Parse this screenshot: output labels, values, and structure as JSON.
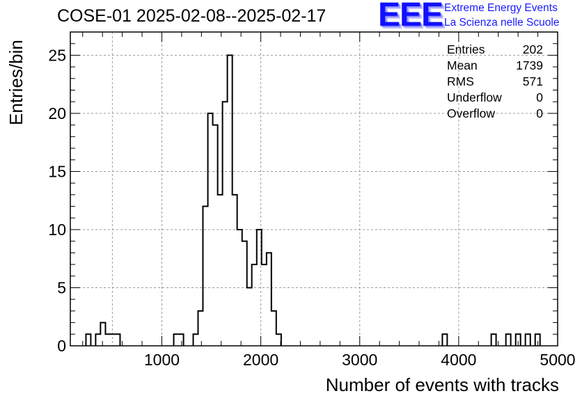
{
  "title": "COSE-01 2025-02-08--2025-02-17",
  "logo": {
    "mark": "EEE",
    "line1": "Extreme Energy Events",
    "line2": "La Scienza nelle Scuole"
  },
  "stats": [
    {
      "label": "Entries",
      "value": "202"
    },
    {
      "label": "Mean",
      "value": "1739"
    },
    {
      "label": "RMS",
      "value": "571"
    },
    {
      "label": "Underflow",
      "value": "0"
    },
    {
      "label": "Overflow",
      "value": "0"
    }
  ],
  "colors": {
    "line": "#000000",
    "grid": "#9a9a9a",
    "logo": "#1010ff"
  },
  "chart_data": {
    "type": "bar",
    "style": "step-histogram",
    "xlabel": "Number of events with tracks",
    "ylabel": "Entries/bin",
    "xlim": [
      75,
      5000
    ],
    "ylim": [
      0,
      27
    ],
    "x_ticks": [
      1000,
      2000,
      3000,
      4000,
      5000
    ],
    "y_ticks": [
      0,
      5,
      10,
      15,
      20,
      25
    ],
    "grid": true,
    "legend": "none",
    "bins": [
      {
        "x0": 233,
        "x1": 282,
        "count": 1
      },
      {
        "x0": 331,
        "x1": 380,
        "count": 1
      },
      {
        "x0": 380,
        "x1": 430,
        "count": 2
      },
      {
        "x0": 430,
        "x1": 479,
        "count": 1
      },
      {
        "x0": 479,
        "x1": 529,
        "count": 1
      },
      {
        "x0": 529,
        "x1": 578,
        "count": 1
      },
      {
        "x0": 1120,
        "x1": 1169,
        "count": 1
      },
      {
        "x0": 1169,
        "x1": 1219,
        "count": 1
      },
      {
        "x0": 1317,
        "x1": 1366,
        "count": 1
      },
      {
        "x0": 1366,
        "x1": 1415,
        "count": 3
      },
      {
        "x0": 1415,
        "x1": 1465,
        "count": 12
      },
      {
        "x0": 1465,
        "x1": 1514,
        "count": 20
      },
      {
        "x0": 1514,
        "x1": 1564,
        "count": 19
      },
      {
        "x0": 1564,
        "x1": 1613,
        "count": 13
      },
      {
        "x0": 1613,
        "x1": 1662,
        "count": 21
      },
      {
        "x0": 1662,
        "x1": 1712,
        "count": 25
      },
      {
        "x0": 1712,
        "x1": 1761,
        "count": 13
      },
      {
        "x0": 1761,
        "x1": 1811,
        "count": 10
      },
      {
        "x0": 1811,
        "x1": 1860,
        "count": 9
      },
      {
        "x0": 1860,
        "x1": 1909,
        "count": 5
      },
      {
        "x0": 1909,
        "x1": 1959,
        "count": 7
      },
      {
        "x0": 1959,
        "x1": 2008,
        "count": 10
      },
      {
        "x0": 2008,
        "x1": 2058,
        "count": 7
      },
      {
        "x0": 2058,
        "x1": 2107,
        "count": 8
      },
      {
        "x0": 2107,
        "x1": 2156,
        "count": 3
      },
      {
        "x0": 2156,
        "x1": 2206,
        "count": 1
      },
      {
        "x0": 3835,
        "x1": 3884,
        "count": 1
      },
      {
        "x0": 4329,
        "x1": 4378,
        "count": 1
      },
      {
        "x0": 4477,
        "x1": 4526,
        "count": 1
      },
      {
        "x0": 4576,
        "x1": 4625,
        "count": 1
      },
      {
        "x0": 4674,
        "x1": 4724,
        "count": 1
      },
      {
        "x0": 4773,
        "x1": 4822,
        "count": 1
      }
    ]
  }
}
